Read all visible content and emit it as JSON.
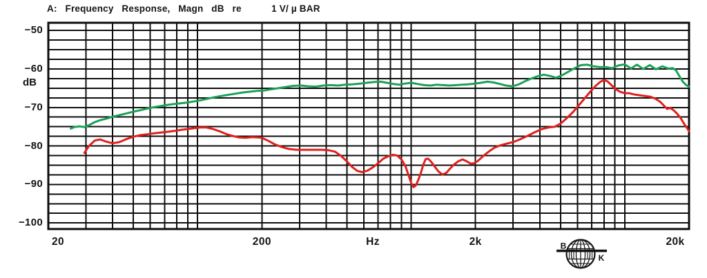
{
  "window": {
    "background": "#ffffff",
    "text_color": "#141414"
  },
  "chart_data": {
    "type": "line",
    "title": "A:   Frequency   Response,   Magn   dB   re           1 V/ µ BAR",
    "ylabel": "dB",
    "x_unit_label": "Hz",
    "x_scale": "log",
    "xlim": [
      20,
      20000
    ],
    "ylim": [
      -101.5,
      -48
    ],
    "grid": "on",
    "y_minor_step_db": 2.5,
    "y_ticks": [
      {
        "db": -50,
        "label": "−50"
      },
      {
        "db": -60,
        "label": "−60"
      },
      {
        "db": -70,
        "label": "−70"
      },
      {
        "db": -80,
        "label": "−80"
      },
      {
        "db": -90,
        "label": "−90"
      },
      {
        "db": -100,
        "label": "−100"
      }
    ],
    "x_ticks": [
      {
        "f": 20,
        "label": "20"
      },
      {
        "f": 200,
        "label": "200"
      },
      {
        "f": 2000,
        "label": "2k"
      },
      {
        "f": 20000,
        "label": "20k"
      }
    ],
    "series": [
      {
        "name": "upper-response-green",
        "color": "#1ba156",
        "points": [
          [
            25.5,
            -75.5
          ],
          [
            26.5,
            -75.1
          ],
          [
            28,
            -74.9
          ],
          [
            29.5,
            -75.1
          ],
          [
            31,
            -74.6
          ],
          [
            33,
            -73.8
          ],
          [
            35,
            -73.3
          ],
          [
            37.5,
            -72.9
          ],
          [
            40,
            -72.4
          ],
          [
            43,
            -72.0
          ],
          [
            46,
            -71.6
          ],
          [
            50,
            -71.1
          ],
          [
            54,
            -70.7
          ],
          [
            58,
            -70.3
          ],
          [
            63,
            -69.9
          ],
          [
            68,
            -69.6
          ],
          [
            73,
            -69.3
          ],
          [
            78,
            -69.1
          ],
          [
            84,
            -68.9
          ],
          [
            90,
            -68.7
          ],
          [
            97,
            -68.4
          ],
          [
            104,
            -68.1
          ],
          [
            112,
            -67.7
          ],
          [
            121,
            -67.3
          ],
          [
            130,
            -67.0
          ],
          [
            140,
            -66.7
          ],
          [
            151,
            -66.4
          ],
          [
            163,
            -66.1
          ],
          [
            176,
            -65.9
          ],
          [
            190,
            -65.7
          ],
          [
            205,
            -65.6
          ],
          [
            220,
            -65.3
          ],
          [
            238,
            -65.0
          ],
          [
            258,
            -64.7
          ],
          [
            280,
            -64.4
          ],
          [
            305,
            -64.3
          ],
          [
            330,
            -64.5
          ],
          [
            358,
            -64.6
          ],
          [
            388,
            -64.3
          ],
          [
            420,
            -64.2
          ],
          [
            455,
            -64.3
          ],
          [
            490,
            -64.1
          ],
          [
            530,
            -64.0
          ],
          [
            575,
            -63.8
          ],
          [
            620,
            -63.6
          ],
          [
            670,
            -63.4
          ],
          [
            720,
            -63.3
          ],
          [
            770,
            -63.6
          ],
          [
            825,
            -63.9
          ],
          [
            880,
            -64.1
          ],
          [
            935,
            -63.8
          ],
          [
            1000,
            -63.6
          ],
          [
            1070,
            -63.9
          ],
          [
            1150,
            -64.2
          ],
          [
            1230,
            -64.3
          ],
          [
            1320,
            -64.1
          ],
          [
            1410,
            -64.2
          ],
          [
            1510,
            -64.3
          ],
          [
            1620,
            -64.2
          ],
          [
            1730,
            -64.1
          ],
          [
            1850,
            -64.0
          ],
          [
            1980,
            -63.8
          ],
          [
            2120,
            -63.6
          ],
          [
            2270,
            -63.3
          ],
          [
            2430,
            -63.5
          ],
          [
            2600,
            -63.9
          ],
          [
            2780,
            -64.3
          ],
          [
            2980,
            -64.5
          ],
          [
            3190,
            -64.0
          ],
          [
            3410,
            -63.2
          ],
          [
            3650,
            -62.5
          ],
          [
            3900,
            -61.9
          ],
          [
            4170,
            -61.5
          ],
          [
            4460,
            -61.8
          ],
          [
            4770,
            -62.3
          ],
          [
            5100,
            -61.6
          ],
          [
            5450,
            -60.7
          ],
          [
            5830,
            -59.8
          ],
          [
            6240,
            -59.0
          ],
          [
            6670,
            -58.9
          ],
          [
            7130,
            -59.3
          ],
          [
            7630,
            -59.5
          ],
          [
            8160,
            -59.5
          ],
          [
            8730,
            -59.8
          ],
          [
            9340,
            -59.1
          ],
          [
            9990,
            -58.8
          ],
          [
            10700,
            -59.9
          ],
          [
            11400,
            -58.9
          ],
          [
            12200,
            -60.0
          ],
          [
            13100,
            -59.0
          ],
          [
            14000,
            -60.1
          ],
          [
            15000,
            -59.3
          ],
          [
            16000,
            -59.9
          ],
          [
            16800,
            -59.8
          ],
          [
            17400,
            -60.4
          ],
          [
            18000,
            -61.8
          ],
          [
            18700,
            -63.3
          ],
          [
            19400,
            -64.2
          ],
          [
            20000,
            -64.6
          ]
        ]
      },
      {
        "name": "lower-response-red",
        "color": "#df201d",
        "points": [
          [
            29.5,
            -81.8
          ],
          [
            31,
            -80.0
          ],
          [
            33,
            -78.6
          ],
          [
            35,
            -78.3
          ],
          [
            37,
            -78.8
          ],
          [
            40,
            -79.3
          ],
          [
            43,
            -79.0
          ],
          [
            46,
            -78.3
          ],
          [
            50,
            -77.6
          ],
          [
            54,
            -77.2
          ],
          [
            58,
            -77.0
          ],
          [
            63,
            -76.7
          ],
          [
            68,
            -76.5
          ],
          [
            73,
            -76.3
          ],
          [
            78,
            -76.1
          ],
          [
            84,
            -75.8
          ],
          [
            90,
            -75.6
          ],
          [
            96,
            -75.4
          ],
          [
            103,
            -75.2
          ],
          [
            110,
            -75.2
          ],
          [
            118,
            -75.6
          ],
          [
            127,
            -76.2
          ],
          [
            136,
            -76.9
          ],
          [
            146,
            -77.4
          ],
          [
            157,
            -77.8
          ],
          [
            168,
            -77.9
          ],
          [
            180,
            -77.7
          ],
          [
            192,
            -77.8
          ],
          [
            200,
            -77.9
          ],
          [
            215,
            -78.7
          ],
          [
            230,
            -79.6
          ],
          [
            248,
            -80.3
          ],
          [
            268,
            -80.8
          ],
          [
            290,
            -81.0
          ],
          [
            320,
            -81.0
          ],
          [
            350,
            -81.0
          ],
          [
            380,
            -81.0
          ],
          [
            410,
            -81.1
          ],
          [
            440,
            -81.5
          ],
          [
            470,
            -82.6
          ],
          [
            500,
            -84.0
          ],
          [
            530,
            -85.5
          ],
          [
            560,
            -86.5
          ],
          [
            590,
            -86.8
          ],
          [
            625,
            -86.4
          ],
          [
            660,
            -85.6
          ],
          [
            700,
            -84.5
          ],
          [
            740,
            -83.3
          ],
          [
            780,
            -82.7
          ],
          [
            820,
            -82.3
          ],
          [
            860,
            -82.5
          ],
          [
            900,
            -83.5
          ],
          [
            940,
            -85.2
          ],
          [
            970,
            -87.5
          ],
          [
            1000,
            -89.6
          ],
          [
            1025,
            -90.7
          ],
          [
            1050,
            -90.3
          ],
          [
            1080,
            -88.8
          ],
          [
            1110,
            -87.0
          ],
          [
            1140,
            -84.8
          ],
          [
            1170,
            -83.4
          ],
          [
            1200,
            -83.3
          ],
          [
            1240,
            -84.1
          ],
          [
            1290,
            -85.4
          ],
          [
            1340,
            -86.6
          ],
          [
            1400,
            -87.4
          ],
          [
            1460,
            -87.0
          ],
          [
            1520,
            -85.9
          ],
          [
            1590,
            -84.8
          ],
          [
            1660,
            -84.0
          ],
          [
            1740,
            -83.5
          ],
          [
            1820,
            -84.0
          ],
          [
            1900,
            -84.6
          ],
          [
            1960,
            -84.5
          ],
          [
            2040,
            -84.0
          ],
          [
            2120,
            -83.2
          ],
          [
            2220,
            -82.2
          ],
          [
            2330,
            -81.3
          ],
          [
            2450,
            -80.5
          ],
          [
            2600,
            -79.9
          ],
          [
            2800,
            -79.4
          ],
          [
            3000,
            -79.0
          ],
          [
            3200,
            -78.4
          ],
          [
            3500,
            -77.4
          ],
          [
            3800,
            -76.4
          ],
          [
            4100,
            -75.6
          ],
          [
            4400,
            -75.2
          ],
          [
            4700,
            -75.0
          ],
          [
            5000,
            -74.2
          ],
          [
            5300,
            -73.0
          ],
          [
            5700,
            -71.3
          ],
          [
            6100,
            -69.4
          ],
          [
            6500,
            -67.6
          ],
          [
            6900,
            -65.9
          ],
          [
            7300,
            -64.4
          ],
          [
            7700,
            -63.3
          ],
          [
            8000,
            -62.9
          ],
          [
            8300,
            -63.2
          ],
          [
            8700,
            -64.3
          ],
          [
            9100,
            -65.3
          ],
          [
            9500,
            -65.9
          ],
          [
            10000,
            -66.3
          ],
          [
            10500,
            -66.3
          ],
          [
            11000,
            -66.6
          ],
          [
            11600,
            -66.8
          ],
          [
            12300,
            -67.0
          ],
          [
            13100,
            -67.2
          ],
          [
            13900,
            -67.7
          ],
          [
            14700,
            -68.6
          ],
          [
            15300,
            -69.6
          ],
          [
            15800,
            -70.4
          ],
          [
            16300,
            -70.1
          ],
          [
            16900,
            -70.7
          ],
          [
            17500,
            -71.5
          ],
          [
            18200,
            -72.6
          ],
          [
            19000,
            -74.3
          ],
          [
            19600,
            -75.4
          ],
          [
            20000,
            -76.2
          ]
        ]
      }
    ]
  },
  "brand": {
    "logo_name": "bruel-kjaer-globe-logo",
    "left_letter": "B",
    "right_letter": "K"
  }
}
